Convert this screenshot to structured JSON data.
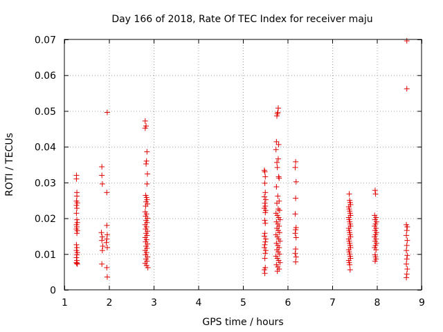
{
  "chart_data": {
    "type": "scatter",
    "title": "Day 166 of 2018, Rate Of TEC Index for receiver maju",
    "xlabel": "GPS time / hours",
    "ylabel": "ROTI / TECUs",
    "xlim": [
      1,
      9
    ],
    "ylim": [
      0,
      0.07
    ],
    "xticks": [
      1,
      2,
      3,
      4,
      5,
      6,
      7,
      8,
      9
    ],
    "yticks": [
      0,
      0.01,
      0.02,
      0.03,
      0.04,
      0.05,
      0.06,
      0.07
    ],
    "ytick_labels": [
      "0",
      "0.01",
      "0.02",
      "0.03",
      "0.04",
      "0.05",
      "0.06",
      "0.07"
    ],
    "grid": true,
    "marker": "+",
    "color": "#e00000",
    "series": [
      {
        "name": "ROTI",
        "points": [
          [
            1.27,
            0.032
          ],
          [
            1.27,
            0.031
          ],
          [
            1.28,
            0.0272
          ],
          [
            1.28,
            0.0262
          ],
          [
            1.27,
            0.0248
          ],
          [
            1.29,
            0.0243
          ],
          [
            1.27,
            0.0236
          ],
          [
            1.28,
            0.0228
          ],
          [
            1.27,
            0.0214
          ],
          [
            1.28,
            0.0196
          ],
          [
            1.29,
            0.0188
          ],
          [
            1.27,
            0.0182
          ],
          [
            1.28,
            0.0176
          ],
          [
            1.27,
            0.017
          ],
          [
            1.29,
            0.0165
          ],
          [
            1.28,
            0.0158
          ],
          [
            1.27,
            0.0126
          ],
          [
            1.28,
            0.0118
          ],
          [
            1.27,
            0.011
          ],
          [
            1.29,
            0.0104
          ],
          [
            1.28,
            0.0098
          ],
          [
            1.27,
            0.009
          ],
          [
            1.28,
            0.0082
          ],
          [
            1.27,
            0.0076
          ],
          [
            1.29,
            0.0072
          ],
          [
            1.28,
            0.0074
          ],
          [
            1.84,
            0.0344
          ],
          [
            1.84,
            0.032
          ],
          [
            1.85,
            0.0296
          ],
          [
            1.83,
            0.016
          ],
          [
            1.85,
            0.0148
          ],
          [
            1.84,
            0.0138
          ],
          [
            1.86,
            0.0122
          ],
          [
            1.85,
            0.011
          ],
          [
            1.84,
            0.0072
          ],
          [
            1.96,
            0.0496
          ],
          [
            1.95,
            0.0272
          ],
          [
            1.95,
            0.018
          ],
          [
            1.96,
            0.0154
          ],
          [
            1.95,
            0.0142
          ],
          [
            1.94,
            0.0132
          ],
          [
            1.96,
            0.0118
          ],
          [
            1.95,
            0.0062
          ],
          [
            1.96,
            0.0036
          ],
          [
            2.81,
            0.0472
          ],
          [
            2.83,
            0.0458
          ],
          [
            2.81,
            0.0452
          ],
          [
            2.85,
            0.0386
          ],
          [
            2.84,
            0.036
          ],
          [
            2.83,
            0.0352
          ],
          [
            2.86,
            0.0324
          ],
          [
            2.85,
            0.0296
          ],
          [
            2.82,
            0.0264
          ],
          [
            2.84,
            0.0258
          ],
          [
            2.85,
            0.0252
          ],
          [
            2.83,
            0.0246
          ],
          [
            2.86,
            0.024
          ],
          [
            2.82,
            0.0234
          ],
          [
            2.81,
            0.0218
          ],
          [
            2.84,
            0.0212
          ],
          [
            2.82,
            0.0206
          ],
          [
            2.86,
            0.02
          ],
          [
            2.83,
            0.0194
          ],
          [
            2.85,
            0.0188
          ],
          [
            2.81,
            0.0182
          ],
          [
            2.84,
            0.0176
          ],
          [
            2.82,
            0.017
          ],
          [
            2.86,
            0.0164
          ],
          [
            2.83,
            0.0158
          ],
          [
            2.85,
            0.0152
          ],
          [
            2.81,
            0.0146
          ],
          [
            2.84,
            0.014
          ],
          [
            2.82,
            0.0134
          ],
          [
            2.86,
            0.0128
          ],
          [
            2.83,
            0.0122
          ],
          [
            2.85,
            0.0116
          ],
          [
            2.81,
            0.011
          ],
          [
            2.84,
            0.0104
          ],
          [
            2.82,
            0.0098
          ],
          [
            2.86,
            0.0092
          ],
          [
            2.83,
            0.0086
          ],
          [
            2.85,
            0.008
          ],
          [
            2.81,
            0.0074
          ],
          [
            2.84,
            0.0068
          ],
          [
            2.87,
            0.0062
          ],
          [
            5.48,
            0.0334
          ],
          [
            5.49,
            0.033
          ],
          [
            5.5,
            0.0316
          ],
          [
            5.49,
            0.0298
          ],
          [
            5.5,
            0.0272
          ],
          [
            5.48,
            0.026
          ],
          [
            5.51,
            0.0252
          ],
          [
            5.49,
            0.0242
          ],
          [
            5.5,
            0.0234
          ],
          [
            5.48,
            0.0228
          ],
          [
            5.51,
            0.0222
          ],
          [
            5.5,
            0.0216
          ],
          [
            5.49,
            0.0194
          ],
          [
            5.5,
            0.0186
          ],
          [
            5.49,
            0.0158
          ],
          [
            5.48,
            0.015
          ],
          [
            5.51,
            0.0142
          ],
          [
            5.5,
            0.0134
          ],
          [
            5.49,
            0.0126
          ],
          [
            5.48,
            0.0118
          ],
          [
            5.51,
            0.011
          ],
          [
            5.5,
            0.0102
          ],
          [
            5.49,
            0.0088
          ],
          [
            5.5,
            0.0062
          ],
          [
            5.48,
            0.0056
          ],
          [
            5.49,
            0.0046
          ],
          [
            5.79,
            0.0508
          ],
          [
            5.78,
            0.0496
          ],
          [
            5.77,
            0.0492
          ],
          [
            5.76,
            0.0486
          ],
          [
            5.75,
            0.0414
          ],
          [
            5.8,
            0.0406
          ],
          [
            5.74,
            0.0392
          ],
          [
            5.79,
            0.0366
          ],
          [
            5.76,
            0.0356
          ],
          [
            5.77,
            0.0342
          ],
          [
            5.8,
            0.0316
          ],
          [
            5.81,
            0.0312
          ],
          [
            5.75,
            0.0288
          ],
          [
            5.78,
            0.0262
          ],
          [
            5.81,
            0.0248
          ],
          [
            5.76,
            0.0242
          ],
          [
            5.79,
            0.0226
          ],
          [
            5.82,
            0.0222
          ],
          [
            5.74,
            0.0214
          ],
          [
            5.77,
            0.0208
          ],
          [
            5.8,
            0.0202
          ],
          [
            5.83,
            0.0196
          ],
          [
            5.75,
            0.019
          ],
          [
            5.78,
            0.0184
          ],
          [
            5.81,
            0.0178
          ],
          [
            5.76,
            0.0172
          ],
          [
            5.79,
            0.0166
          ],
          [
            5.82,
            0.016
          ],
          [
            5.74,
            0.0154
          ],
          [
            5.77,
            0.0148
          ],
          [
            5.8,
            0.0142
          ],
          [
            5.83,
            0.0136
          ],
          [
            5.75,
            0.013
          ],
          [
            5.78,
            0.0124
          ],
          [
            5.81,
            0.0118
          ],
          [
            5.76,
            0.0112
          ],
          [
            5.79,
            0.0106
          ],
          [
            5.82,
            0.01
          ],
          [
            5.74,
            0.0094
          ],
          [
            5.77,
            0.0088
          ],
          [
            5.8,
            0.0082
          ],
          [
            5.83,
            0.0076
          ],
          [
            5.75,
            0.007
          ],
          [
            5.78,
            0.0064
          ],
          [
            5.81,
            0.0058
          ],
          [
            5.77,
            0.0052
          ],
          [
            6.18,
            0.0358
          ],
          [
            6.17,
            0.0342
          ],
          [
            6.19,
            0.0302
          ],
          [
            6.18,
            0.0256
          ],
          [
            6.17,
            0.0212
          ],
          [
            6.19,
            0.0174
          ],
          [
            6.18,
            0.0168
          ],
          [
            6.17,
            0.0158
          ],
          [
            6.19,
            0.0146
          ],
          [
            6.18,
            0.0114
          ],
          [
            6.17,
            0.0102
          ],
          [
            6.19,
            0.0092
          ],
          [
            6.18,
            0.0078
          ],
          [
            7.38,
            0.0268
          ],
          [
            7.39,
            0.025
          ],
          [
            7.4,
            0.0244
          ],
          [
            7.41,
            0.0238
          ],
          [
            7.37,
            0.0232
          ],
          [
            7.38,
            0.0226
          ],
          [
            7.39,
            0.022
          ],
          [
            7.4,
            0.0214
          ],
          [
            7.41,
            0.0208
          ],
          [
            7.37,
            0.0202
          ],
          [
            7.38,
            0.0196
          ],
          [
            7.39,
            0.019
          ],
          [
            7.4,
            0.0184
          ],
          [
            7.41,
            0.0178
          ],
          [
            7.37,
            0.0172
          ],
          [
            7.38,
            0.0166
          ],
          [
            7.39,
            0.016
          ],
          [
            7.4,
            0.0154
          ],
          [
            7.41,
            0.0148
          ],
          [
            7.37,
            0.0142
          ],
          [
            7.38,
            0.0136
          ],
          [
            7.39,
            0.013
          ],
          [
            7.4,
            0.0124
          ],
          [
            7.41,
            0.0118
          ],
          [
            7.37,
            0.0112
          ],
          [
            7.38,
            0.0106
          ],
          [
            7.39,
            0.01
          ],
          [
            7.4,
            0.0094
          ],
          [
            7.41,
            0.0088
          ],
          [
            7.37,
            0.0082
          ],
          [
            7.38,
            0.0076
          ],
          [
            7.39,
            0.007
          ],
          [
            7.4,
            0.0056
          ],
          [
            7.96,
            0.0278
          ],
          [
            7.97,
            0.0268
          ],
          [
            7.95,
            0.0208
          ],
          [
            7.98,
            0.0202
          ],
          [
            7.96,
            0.0196
          ],
          [
            7.99,
            0.019
          ],
          [
            7.97,
            0.0184
          ],
          [
            7.95,
            0.0178
          ],
          [
            7.98,
            0.0172
          ],
          [
            7.96,
            0.0166
          ],
          [
            7.99,
            0.016
          ],
          [
            7.97,
            0.0154
          ],
          [
            7.95,
            0.0148
          ],
          [
            7.98,
            0.0142
          ],
          [
            7.96,
            0.0136
          ],
          [
            7.99,
            0.013
          ],
          [
            7.97,
            0.0124
          ],
          [
            7.95,
            0.0118
          ],
          [
            7.98,
            0.0112
          ],
          [
            7.96,
            0.0098
          ],
          [
            7.97,
            0.0092
          ],
          [
            7.98,
            0.0086
          ],
          [
            7.96,
            0.008
          ],
          [
            8.67,
            0.0696
          ],
          [
            8.67,
            0.0562
          ],
          [
            8.66,
            0.0182
          ],
          [
            8.68,
            0.0176
          ],
          [
            8.67,
            0.0166
          ],
          [
            8.66,
            0.0152
          ],
          [
            8.68,
            0.0138
          ],
          [
            8.67,
            0.0124
          ],
          [
            8.66,
            0.011
          ],
          [
            8.68,
            0.0096
          ],
          [
            8.67,
            0.0086
          ],
          [
            8.66,
            0.0072
          ],
          [
            8.68,
            0.0058
          ],
          [
            8.67,
            0.0044
          ],
          [
            8.66,
            0.0034
          ]
        ]
      }
    ]
  }
}
